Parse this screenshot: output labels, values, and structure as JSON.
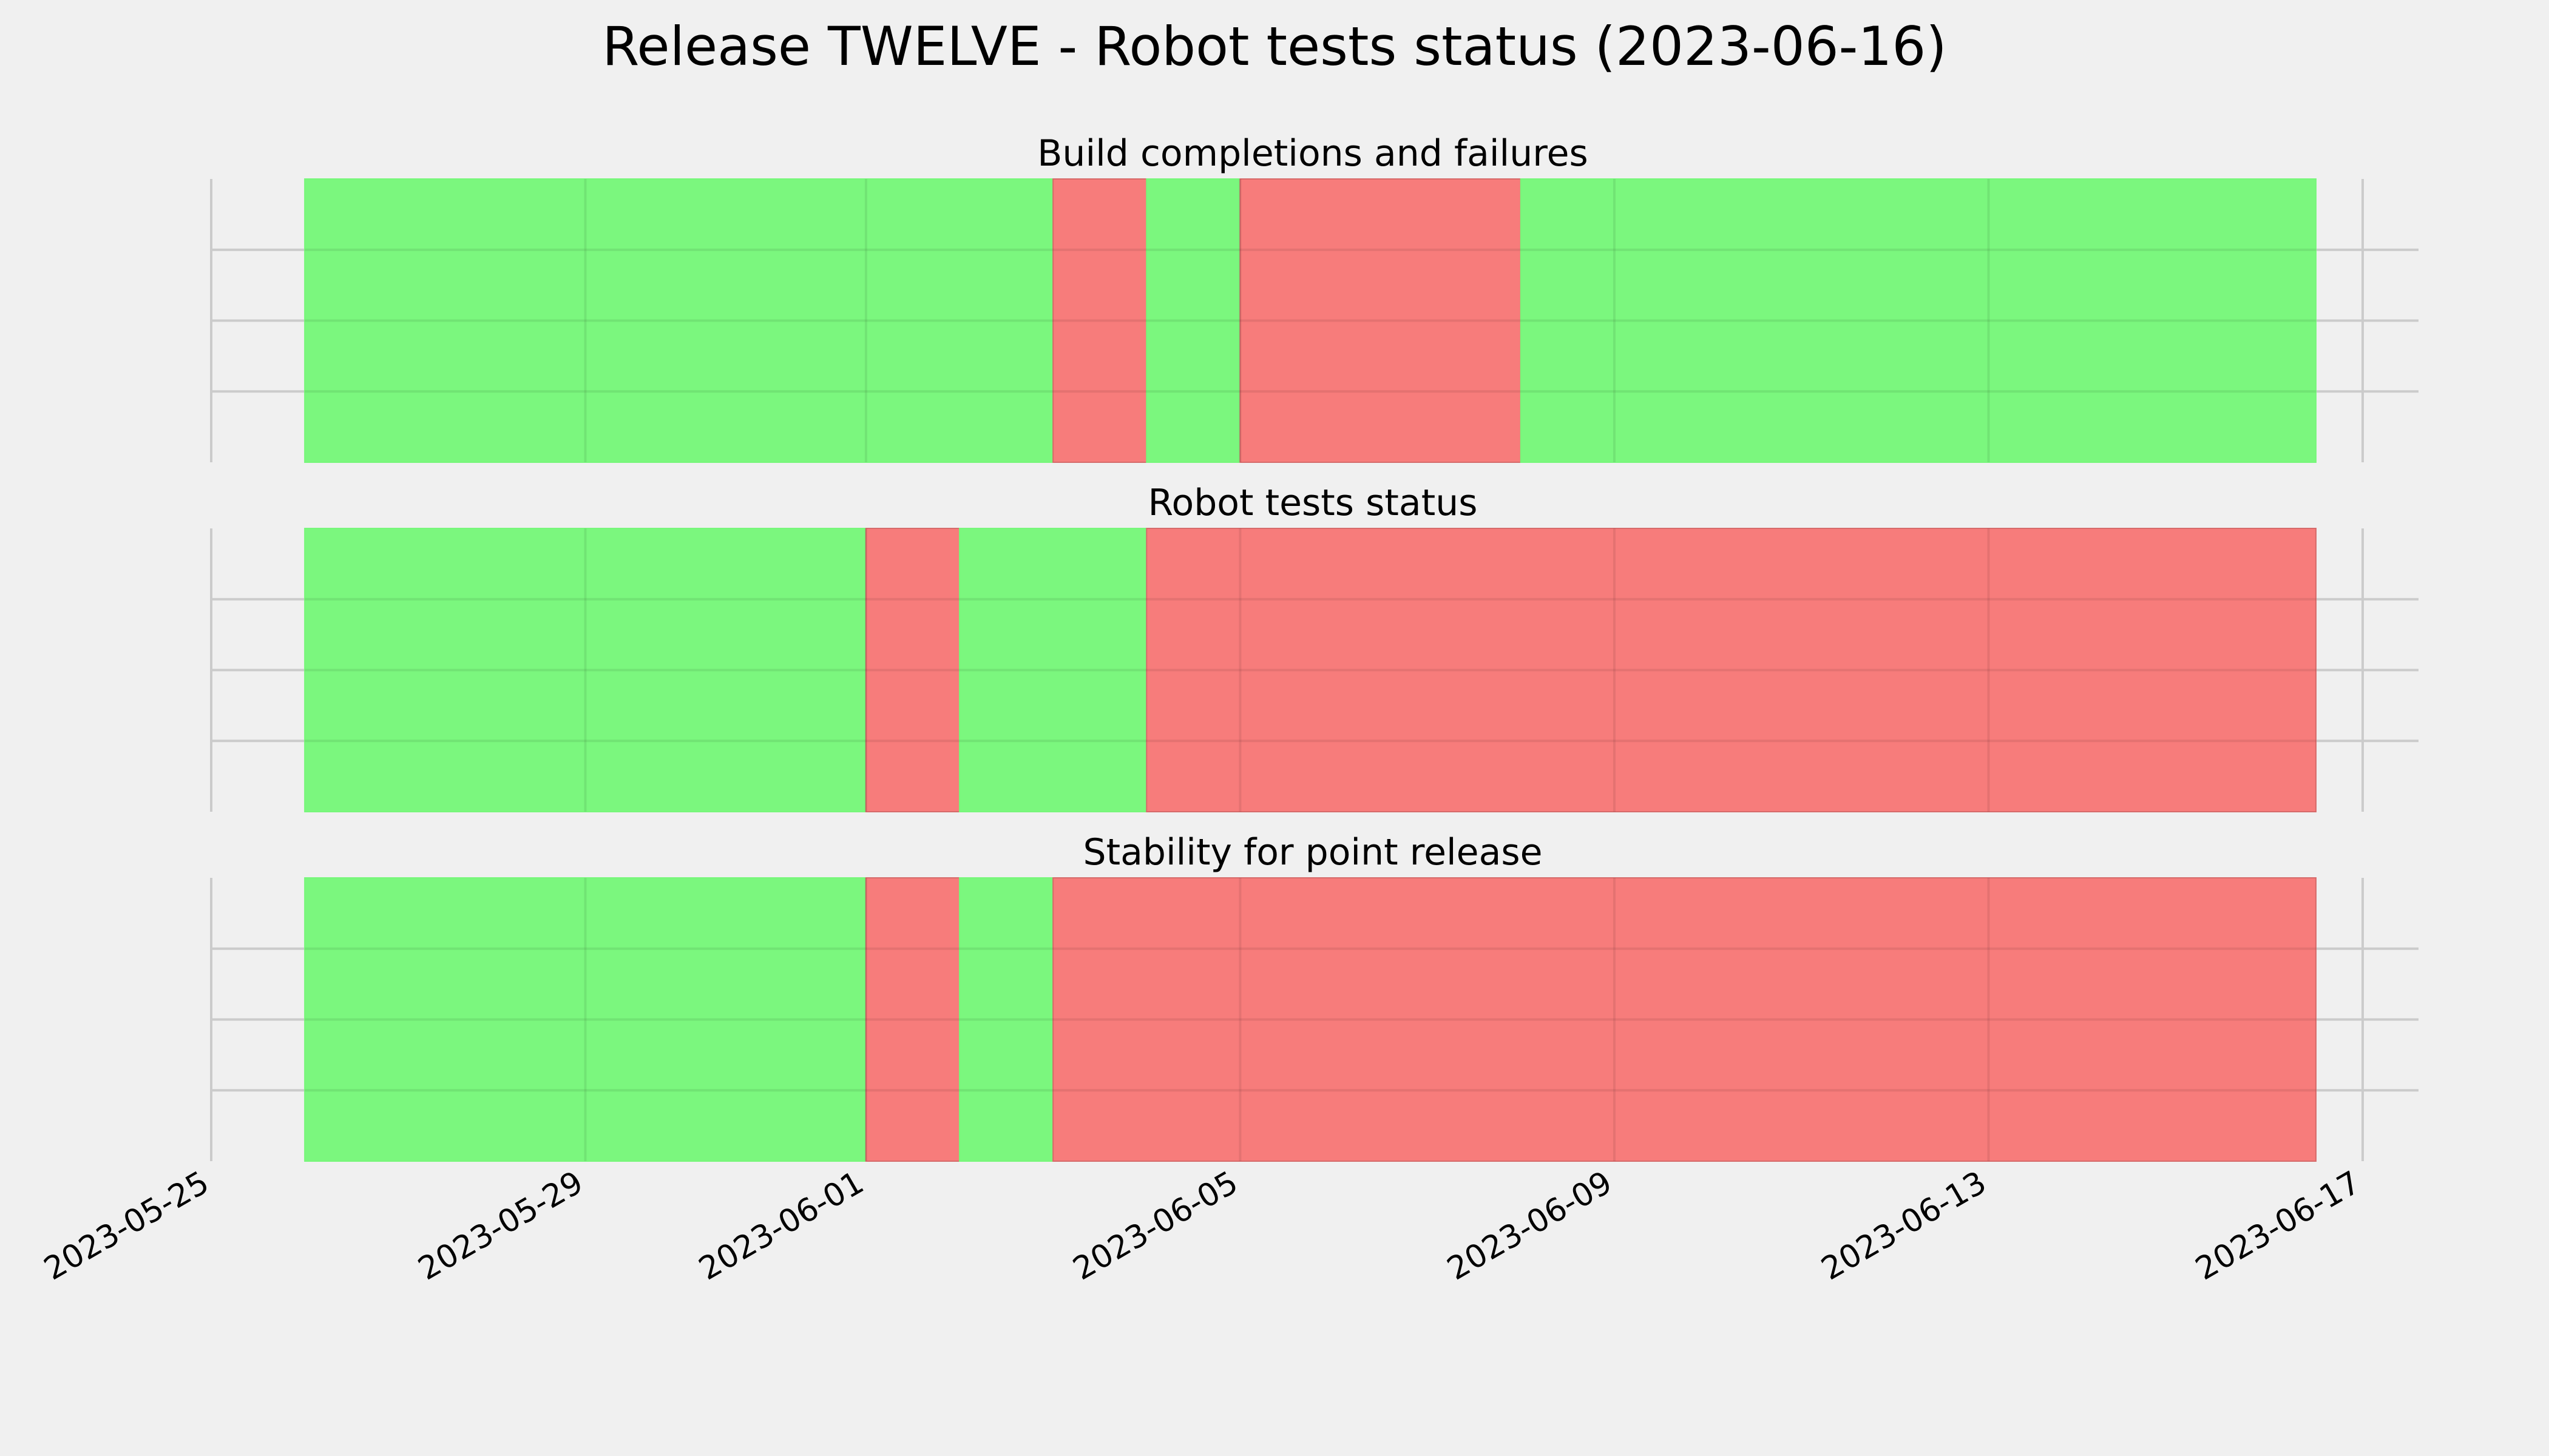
{
  "figure": {
    "title": "Release TWELVE - Robot tests status (2023-06-16)",
    "background": "#f0f0f0"
  },
  "colors": {
    "pass": "#77f77a",
    "fail": "#f77877",
    "grid": "#cbcbcb"
  },
  "chart_data": {
    "type": "timeline",
    "x_axis": {
      "type": "date",
      "range": [
        "2023-05-25",
        "2023-06-17 00:00"
      ],
      "ticks": [
        "2023-05-25",
        "2023-05-29",
        "2023-06-01",
        "2023-06-05",
        "2023-06-09",
        "2023-06-13",
        "2023-06-17"
      ]
    },
    "grid": true,
    "panels": [
      {
        "title": "Build completions and failures",
        "segments": [
          {
            "start": "2023-05-26",
            "end": "2023-06-03",
            "status": "pass"
          },
          {
            "start": "2023-06-03",
            "end": "2023-06-04",
            "status": "fail"
          },
          {
            "start": "2023-06-04",
            "end": "2023-06-05",
            "status": "pass"
          },
          {
            "start": "2023-06-05",
            "end": "2023-06-08",
            "status": "fail"
          },
          {
            "start": "2023-06-08",
            "end": "2023-06-16 12:00",
            "status": "pass"
          }
        ]
      },
      {
        "title": "Robot tests status",
        "segments": [
          {
            "start": "2023-05-26",
            "end": "2023-06-01",
            "status": "pass"
          },
          {
            "start": "2023-06-01",
            "end": "2023-06-02",
            "status": "fail"
          },
          {
            "start": "2023-06-02",
            "end": "2023-06-04",
            "status": "pass"
          },
          {
            "start": "2023-06-04",
            "end": "2023-06-16 12:00",
            "status": "fail"
          }
        ]
      },
      {
        "title": "Stability for point release",
        "segments": [
          {
            "start": "2023-05-26",
            "end": "2023-06-01",
            "status": "pass"
          },
          {
            "start": "2023-06-01",
            "end": "2023-06-02",
            "status": "fail"
          },
          {
            "start": "2023-06-02",
            "end": "2023-06-03",
            "status": "pass"
          },
          {
            "start": "2023-06-03",
            "end": "2023-06-16 12:00",
            "status": "fail"
          }
        ]
      }
    ]
  }
}
